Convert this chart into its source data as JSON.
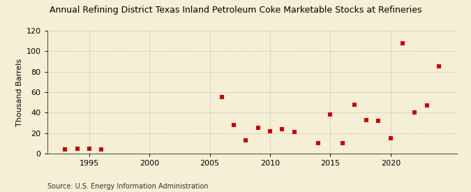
{
  "title": "Annual Refining District Texas Inland Petroleum Coke Marketable Stocks at Refineries",
  "ylabel": "Thousand Barrels",
  "source": "Source: U.S. Energy Information Administration",
  "background_color": "#f5efd5",
  "grid_color": "#aaaaaa",
  "marker_color": "#cc0000",
  "xlim": [
    1991.5,
    2025.5
  ],
  "ylim": [
    0,
    120
  ],
  "xticks": [
    1995,
    2000,
    2005,
    2010,
    2015,
    2020
  ],
  "yticks": [
    0,
    20,
    40,
    60,
    80,
    100,
    120
  ],
  "data": [
    [
      1993,
      4
    ],
    [
      1994,
      5
    ],
    [
      1995,
      5
    ],
    [
      1996,
      4
    ],
    [
      2006,
      55
    ],
    [
      2007,
      28
    ],
    [
      2008,
      13
    ],
    [
      2009,
      25
    ],
    [
      2010,
      22
    ],
    [
      2011,
      24
    ],
    [
      2012,
      21
    ],
    [
      2014,
      10
    ],
    [
      2015,
      38
    ],
    [
      2016,
      10
    ],
    [
      2017,
      48
    ],
    [
      2018,
      33
    ],
    [
      2019,
      32
    ],
    [
      2020,
      15
    ],
    [
      2021,
      108
    ],
    [
      2022,
      40
    ],
    [
      2023,
      47
    ],
    [
      2024,
      85
    ]
  ]
}
